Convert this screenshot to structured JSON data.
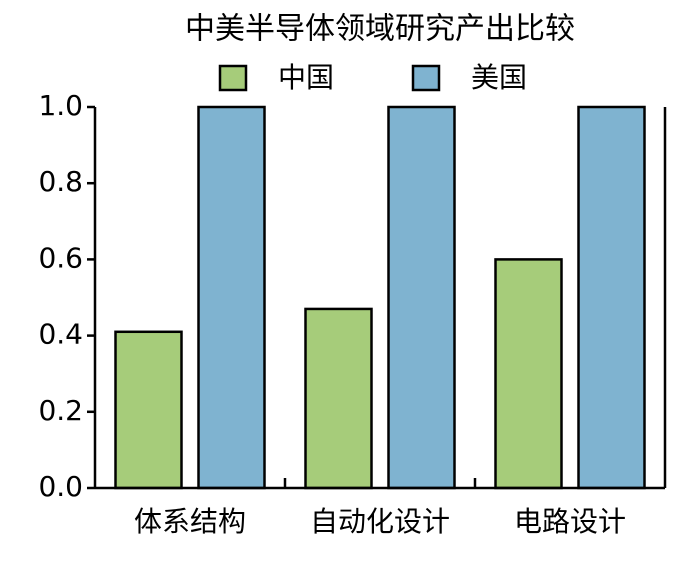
{
  "chart_data": {
    "type": "bar",
    "title": "中美半导体领域研究产出比较",
    "categories": [
      "体系结构",
      "自动化设计",
      "电路设计"
    ],
    "series": [
      {
        "name": "中国",
        "color": "#a6cc7a",
        "values": [
          0.41,
          0.47,
          0.6
        ]
      },
      {
        "name": "美国",
        "color": "#7fb3d0",
        "values": [
          1.0,
          1.0,
          1.0
        ]
      }
    ],
    "ylim": [
      0,
      1
    ],
    "yticks": [
      {
        "value": 0,
        "label": "0.0"
      },
      0.2,
      0.4,
      0.6,
      0.8,
      {
        "value": 1,
        "label": "1.0"
      }
    ],
    "legend": "top",
    "grid": false
  }
}
